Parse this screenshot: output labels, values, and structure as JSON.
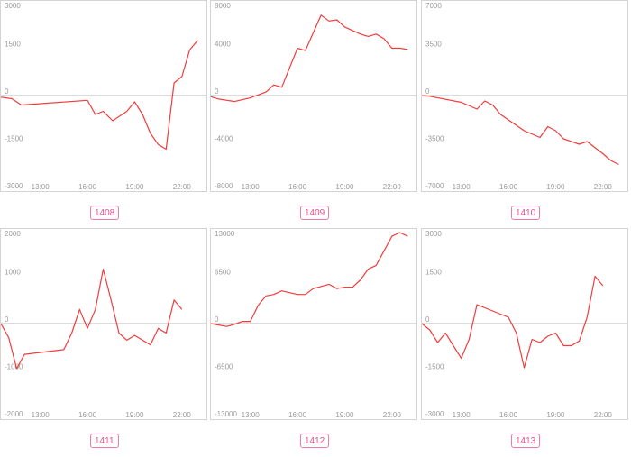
{
  "colors": {
    "line": "#f03c3c",
    "frame": "#d4d4d4",
    "zero_line": "#b8b8b8",
    "tick_text": "#9a9a9a",
    "badge": "#e8528a"
  },
  "chart_data": [
    {
      "type": "line",
      "label": "1408",
      "x_ticks": [
        "13:00",
        "16:00",
        "19:00",
        "22:00"
      ],
      "y_ticks": [
        "3000",
        "1500",
        "0",
        "-1500",
        "-3000"
      ],
      "ylim": [
        -3000,
        3000
      ],
      "xlim": [
        10.5,
        23.5
      ],
      "series": [
        {
          "x": [
            10.5,
            11.2,
            11.8,
            16.0,
            16.5,
            17.0,
            17.6,
            18.5,
            19.0,
            19.5,
            20.0,
            20.5,
            21.0,
            21.5,
            22.0,
            22.5,
            23.0
          ],
          "y": [
            -50,
            -100,
            -300,
            -150,
            -600,
            -500,
            -800,
            -500,
            -200,
            -600,
            -1200,
            -1550,
            -1700,
            400,
            600,
            1450,
            1750
          ]
        }
      ]
    },
    {
      "type": "line",
      "label": "1409",
      "x_ticks": [
        "13:00",
        "16:00",
        "19:00",
        "22:00"
      ],
      "y_ticks": [
        "8000",
        "4000",
        "0",
        "-4000",
        "-8000"
      ],
      "ylim": [
        -8000,
        8000
      ],
      "xlim": [
        10.5,
        23.5
      ],
      "series": [
        {
          "x": [
            10.5,
            11.0,
            12.0,
            13.0,
            14.0,
            14.5,
            15.0,
            16.0,
            16.5,
            17.5,
            18.0,
            18.5,
            19.0,
            20.0,
            20.5,
            21.0,
            21.5,
            22.0,
            22.5,
            23.0
          ],
          "y": [
            -100,
            -300,
            -500,
            -200,
            300,
            900,
            700,
            4000,
            3800,
            6800,
            6300,
            6400,
            5800,
            5200,
            5000,
            5200,
            4800,
            4000,
            4000,
            3900
          ]
        }
      ]
    },
    {
      "type": "line",
      "label": "1410",
      "x_ticks": [
        "13:00",
        "16:00",
        "19:00",
        "22:00"
      ],
      "y_ticks": [
        "7000",
        "3500",
        "0",
        "-3500",
        "-7000"
      ],
      "ylim": [
        -7000,
        7000
      ],
      "xlim": [
        10.5,
        23.5
      ],
      "series": [
        {
          "x": [
            10.5,
            11.0,
            13.0,
            14.0,
            14.5,
            15.0,
            15.5,
            16.0,
            17.0,
            18.0,
            18.5,
            19.0,
            19.5,
            20.5,
            21.0,
            22.0,
            22.5,
            23.0
          ],
          "y": [
            0,
            -50,
            -500,
            -1000,
            -400,
            -700,
            -1400,
            -1800,
            -2600,
            -3100,
            -2300,
            -2600,
            -3200,
            -3600,
            -3400,
            -4300,
            -4800,
            -5100
          ]
        }
      ]
    },
    {
      "type": "line",
      "label": "1411",
      "x_ticks": [
        "13:00",
        "16:00",
        "19:00",
        "22:00"
      ],
      "y_ticks": [
        "2000",
        "1000",
        "0",
        "-1000",
        "-2000"
      ],
      "ylim": [
        -2000,
        2000
      ],
      "xlim": [
        10.5,
        23.5
      ],
      "series": [
        {
          "x": [
            10.5,
            11.0,
            11.5,
            12.0,
            14.5,
            15.0,
            15.5,
            16.0,
            16.5,
            17.0,
            17.5,
            18.0,
            18.5,
            19.0,
            20.0,
            20.5,
            21.0,
            21.5,
            22.0
          ],
          "y": [
            0,
            -300,
            -950,
            -650,
            -550,
            -200,
            300,
            -100,
            300,
            1150,
            500,
            -200,
            -350,
            -250,
            -450,
            -100,
            -200,
            500,
            300
          ]
        }
      ]
    },
    {
      "type": "line",
      "label": "1412",
      "x_ticks": [
        "13:00",
        "16:00",
        "19:00",
        "22:00"
      ],
      "y_ticks": [
        "13000",
        "6500",
        "0",
        "-6500",
        "-13000"
      ],
      "ylim": [
        -13000,
        13000
      ],
      "xlim": [
        10.5,
        23.5
      ],
      "series": [
        {
          "x": [
            10.5,
            11.0,
            11.5,
            12.0,
            12.5,
            13.0,
            13.5,
            14.0,
            14.5,
            15.0,
            16.0,
            16.5,
            17.0,
            18.0,
            18.5,
            19.0,
            19.5,
            20.0,
            20.5,
            21.0,
            21.5,
            22.0,
            22.5,
            23.0
          ],
          "y": [
            0,
            -200,
            -400,
            -100,
            300,
            300,
            2500,
            3800,
            4000,
            4500,
            4000,
            4000,
            4800,
            5400,
            4800,
            5000,
            5000,
            6000,
            7500,
            8000,
            10000,
            12000,
            12500,
            12000
          ]
        }
      ]
    },
    {
      "type": "line",
      "label": "1413",
      "x_ticks": [
        "13:00",
        "16:00",
        "19:00",
        "22:00"
      ],
      "y_ticks": [
        "3000",
        "1500",
        "0",
        "-1500",
        "-3000"
      ],
      "ylim": [
        -3000,
        3000
      ],
      "xlim": [
        10.5,
        23.5
      ],
      "series": [
        {
          "x": [
            10.5,
            11.0,
            11.5,
            12.0,
            12.5,
            13.0,
            13.5,
            14.0,
            16.0,
            16.5,
            17.0,
            17.5,
            18.0,
            18.5,
            19.0,
            19.5,
            20.0,
            20.5,
            21.0,
            21.5,
            22.0
          ],
          "y": [
            0,
            -200,
            -600,
            -300,
            -700,
            -1100,
            -500,
            600,
            200,
            -300,
            -1400,
            -500,
            -600,
            -400,
            -300,
            -700,
            -700,
            -550,
            200,
            1500,
            1200
          ]
        }
      ]
    }
  ]
}
